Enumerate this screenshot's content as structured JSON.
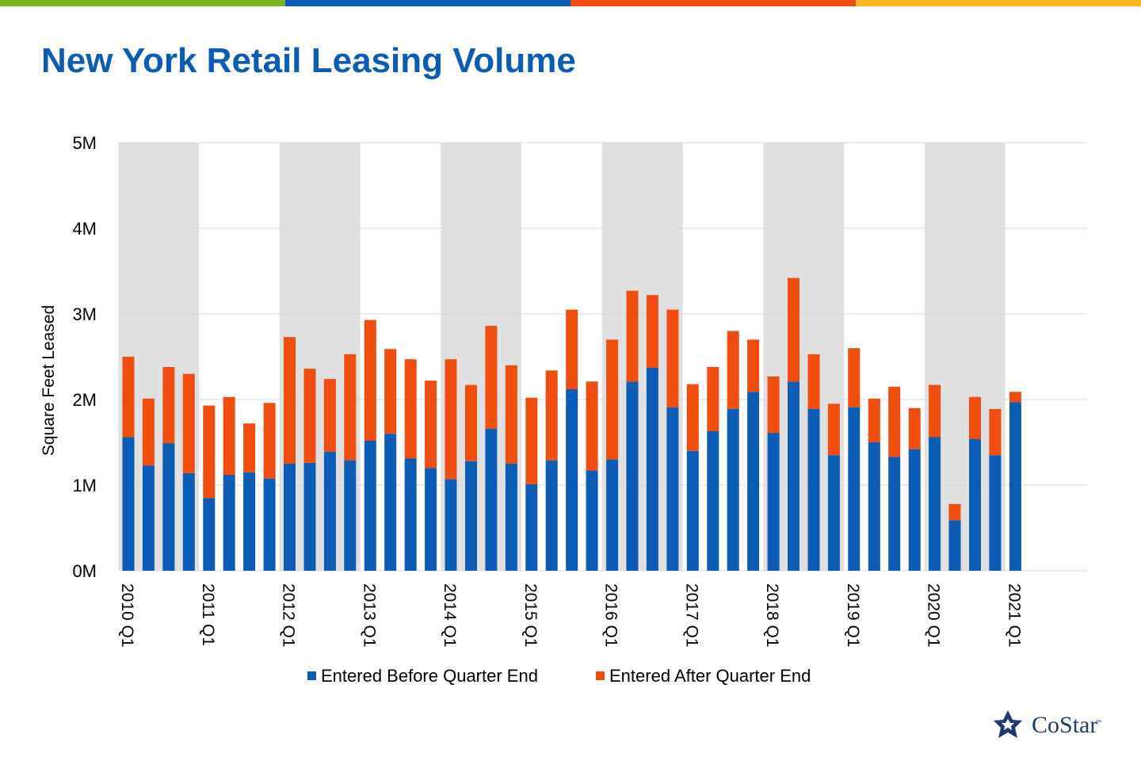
{
  "header": {
    "title": "New York Retail Leasing Volume"
  },
  "topbar": {
    "colors": [
      "#78b828",
      "#0b5cb5",
      "#f04e0f",
      "#fbb520"
    ]
  },
  "logo": {
    "text": "CoStar",
    "tm": "™",
    "icon": "star-icon"
  },
  "colors": {
    "before": "#0b5cb5",
    "after": "#f04e0f",
    "band": "#e0e0e0",
    "grid": "#d9d9d9",
    "title": "#0b5cb5"
  },
  "chart_data": {
    "type": "bar",
    "stacked": true,
    "ylabel": "Square Feet Leased",
    "xlabel": "",
    "ylim": [
      0,
      5000000
    ],
    "yticks": [
      "0M",
      "1M",
      "2M",
      "3M",
      "4M",
      "5M"
    ],
    "grid": true,
    "shaded_bands": "alternating years",
    "legend_position": "bottom",
    "categories": [
      "2010 Q1",
      "2010 Q2",
      "2010 Q3",
      "2010 Q4",
      "2011 Q1",
      "2011 Q2",
      "2011 Q3",
      "2011 Q4",
      "2012 Q1",
      "2012 Q2",
      "2012 Q3",
      "2012 Q4",
      "2013 Q1",
      "2013 Q2",
      "2013 Q3",
      "2013 Q4",
      "2014 Q1",
      "2014 Q2",
      "2014 Q3",
      "2014 Q4",
      "2015 Q1",
      "2015 Q2",
      "2015 Q3",
      "2015 Q4",
      "2016 Q1",
      "2016 Q2",
      "2016 Q3",
      "2016 Q4",
      "2017 Q1",
      "2017 Q2",
      "2017 Q3",
      "2017 Q4",
      "2018 Q1",
      "2018 Q2",
      "2018 Q3",
      "2018 Q4",
      "2019 Q1",
      "2019 Q2",
      "2019 Q3",
      "2019 Q4",
      "2020 Q1",
      "2020 Q2",
      "2020 Q3",
      "2020 Q4",
      "2021 Q1"
    ],
    "xtick_labels": [
      "2010 Q1",
      "2011 Q1",
      "2012 Q1",
      "2013 Q1",
      "2014 Q1",
      "2015 Q1",
      "2016 Q1",
      "2017 Q1",
      "2018 Q1",
      "2019 Q1",
      "2020 Q1",
      "2021 Q1"
    ],
    "series": [
      {
        "name": "Entered Before Quarter End",
        "values": [
          1560000,
          1230000,
          1490000,
          1140000,
          850000,
          1120000,
          1150000,
          1080000,
          1250000,
          1260000,
          1390000,
          1290000,
          1520000,
          1600000,
          1310000,
          1200000,
          1070000,
          1280000,
          1660000,
          1250000,
          1010000,
          1290000,
          2120000,
          1170000,
          1300000,
          2210000,
          2370000,
          1910000,
          1400000,
          1630000,
          1890000,
          2090000,
          1610000,
          2210000,
          1890000,
          1350000,
          1910000,
          1500000,
          1330000,
          1420000,
          1560000,
          590000,
          1540000,
          1350000,
          1970000
        ]
      },
      {
        "name": "Entered After Quarter End",
        "values": [
          940000,
          780000,
          890000,
          1160000,
          1080000,
          910000,
          570000,
          880000,
          1480000,
          1100000,
          850000,
          1240000,
          1410000,
          990000,
          1160000,
          1020000,
          1400000,
          890000,
          1200000,
          1150000,
          1010000,
          1050000,
          930000,
          1040000,
          1400000,
          1060000,
          850000,
          1140000,
          780000,
          750000,
          910000,
          610000,
          660000,
          1210000,
          640000,
          600000,
          690000,
          510000,
          820000,
          480000,
          610000,
          190000,
          490000,
          540000,
          120000
        ]
      }
    ]
  }
}
